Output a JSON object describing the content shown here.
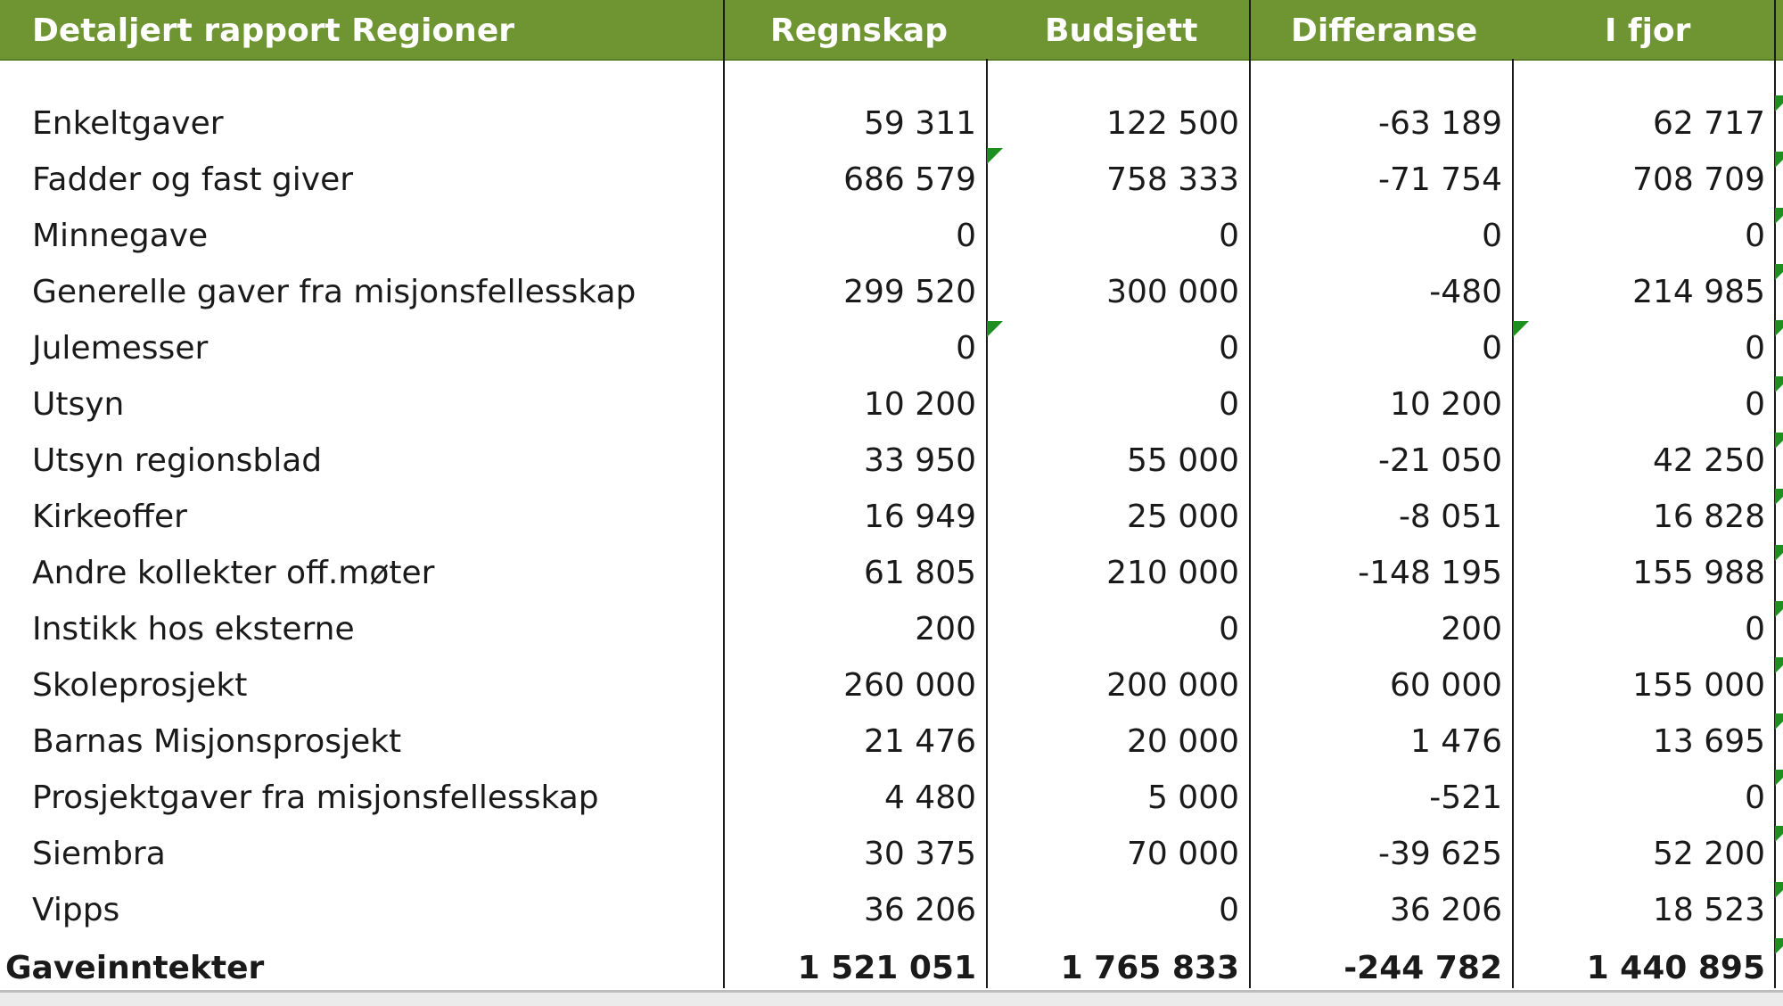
{
  "header": {
    "title": "Detaljert rapport Regioner",
    "col_regnskap": "Regnskap",
    "col_budsjett": "Budsjett",
    "col_differanse": "Differanse",
    "col_ifjor": "I fjor"
  },
  "rows": [
    {
      "label": "Enkeltgaver",
      "regnskap": "59 311",
      "budsjett": "122 500",
      "differanse": "-63 189",
      "ifjor": "62 717"
    },
    {
      "label": "Fadder og fast giver",
      "regnskap": "686 579",
      "budsjett": "758 333",
      "differanse": "-71 754",
      "ifjor": "708 709"
    },
    {
      "label": "Minnegave",
      "regnskap": "0",
      "budsjett": "0",
      "differanse": "0",
      "ifjor": "0"
    },
    {
      "label": "Generelle gaver fra misjonsfellesskap",
      "regnskap": "299 520",
      "budsjett": "300 000",
      "differanse": "-480",
      "ifjor": "214 985"
    },
    {
      "label": "Julemesser",
      "regnskap": "0",
      "budsjett": "0",
      "differanse": "0",
      "ifjor": "0"
    },
    {
      "label": "Utsyn",
      "regnskap": "10 200",
      "budsjett": "0",
      "differanse": "10 200",
      "ifjor": "0"
    },
    {
      "label": "Utsyn regionsblad",
      "regnskap": "33 950",
      "budsjett": "55 000",
      "differanse": "-21 050",
      "ifjor": "42 250"
    },
    {
      "label": "Kirkeoffer",
      "regnskap": "16 949",
      "budsjett": "25 000",
      "differanse": "-8 051",
      "ifjor": "16 828"
    },
    {
      "label": "Andre kollekter off.møter",
      "regnskap": "61 805",
      "budsjett": "210 000",
      "differanse": "-148 195",
      "ifjor": "155 988"
    },
    {
      "label": "Instikk hos eksterne",
      "regnskap": "200",
      "budsjett": "0",
      "differanse": "200",
      "ifjor": "0"
    },
    {
      "label": "Skoleprosjekt",
      "regnskap": "260 000",
      "budsjett": "200 000",
      "differanse": "60 000",
      "ifjor": "155 000"
    },
    {
      "label": "Barnas Misjonsprosjekt",
      "regnskap": "21 476",
      "budsjett": "20 000",
      "differanse": "1 476",
      "ifjor": "13 695"
    },
    {
      "label": "Prosjektgaver fra misjonsfellesskap",
      "regnskap": "4 480",
      "budsjett": "5 000",
      "differanse": "-521",
      "ifjor": "0"
    },
    {
      "label": "Siembra",
      "regnskap": "30 375",
      "budsjett": "70 000",
      "differanse": "-39 625",
      "ifjor": "52 200"
    },
    {
      "label": "Vipps",
      "regnskap": "36 206",
      "budsjett": "0",
      "differanse": "36 206",
      "ifjor": "18 523"
    }
  ],
  "total": {
    "label": "Gaveinntekter",
    "regnskap": "1 521 051",
    "budsjett": "1 765 833",
    "differanse": "-244 782",
    "ifjor": "1 440 895"
  },
  "colors": {
    "header_bg": "#6f9432",
    "flag": "#1e8f1e"
  }
}
